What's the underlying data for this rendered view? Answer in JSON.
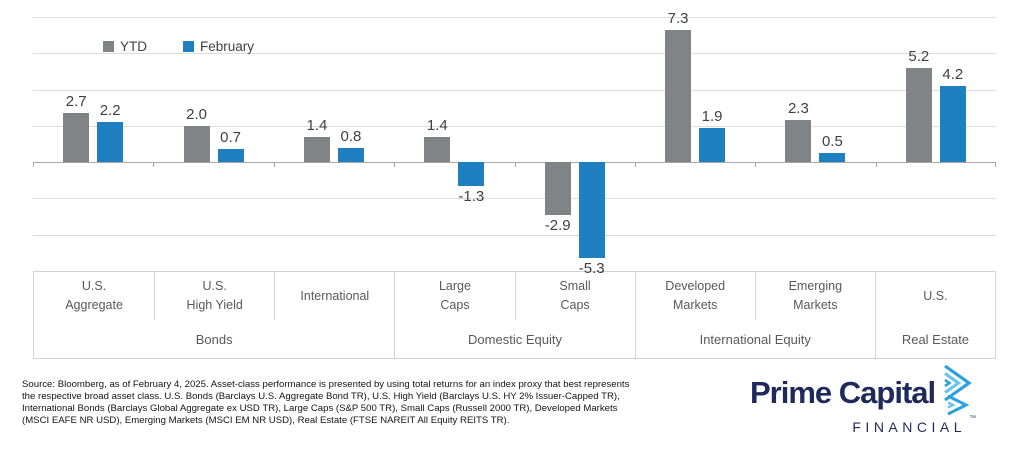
{
  "chart_data": {
    "type": "bar",
    "title": "",
    "categories": [
      [
        "U.S.",
        "Aggregate"
      ],
      [
        "U.S.",
        "High Yield"
      ],
      [
        "International"
      ],
      [
        "Large",
        "Caps"
      ],
      [
        "Small",
        "Caps"
      ],
      [
        "Developed",
        "Markets"
      ],
      [
        "Emerging",
        "Markets"
      ],
      [
        "U.S."
      ]
    ],
    "series": [
      {
        "name": "YTD",
        "color": "#808487",
        "values": [
          2.7,
          2.0,
          1.4,
          1.4,
          -2.9,
          7.3,
          2.3,
          5.2
        ]
      },
      {
        "name": "February",
        "color": "#1F80C1",
        "values": [
          2.2,
          0.7,
          0.8,
          -1.3,
          -5.3,
          1.9,
          0.5,
          4.2
        ]
      }
    ],
    "group_labels": [
      {
        "label": "Bonds",
        "span": 3
      },
      {
        "label": "Domestic Equity",
        "span": 2
      },
      {
        "label": "International Equity",
        "span": 2
      },
      {
        "label": "Real Estate",
        "span": 1
      }
    ],
    "ylim": [
      -6,
      8
    ],
    "gridline_step": 2,
    "grid": true,
    "legend_position": "top-left",
    "xlabel": "",
    "ylabel": ""
  },
  "footer": {
    "source_lines": [
      "Source: Bloomberg, as of February 4, 2025. Asset-class performance is presented by using total returns for an index proxy that best represents",
      "the respective broad asset class. U.S. Bonds (Barclays U.S. Aggregate Bond TR), U.S. High Yield (Barclays U.S. HY 2% Issuer-Capped TR),",
      "International Bonds (Barclays Global Aggregate ex USD TR), Large Caps (S&P 500 TR), Small Caps (Russell 2000 TR), Developed Markets",
      "(MSCI EAFE NR USD), Emerging Markets (MSCI EM NR USD), Real Estate (FTSE NAREIT All Equity REITS TR)."
    ]
  },
  "logo": {
    "title": "Prime Capital",
    "subtitle": "FINANCIAL",
    "trademark": "™"
  },
  "colors": {
    "ytd_gray": "#808487",
    "february_blue": "#1F80C1",
    "brand_navy": "#1F2A5C",
    "brand_light_blue": "#2AA2DF",
    "grid_line": "#DCDCDC",
    "axis_line": "#A8A8A8",
    "table_border": "#D2D2D2",
    "value_label_text": "#404040",
    "category_text": "#595959"
  }
}
